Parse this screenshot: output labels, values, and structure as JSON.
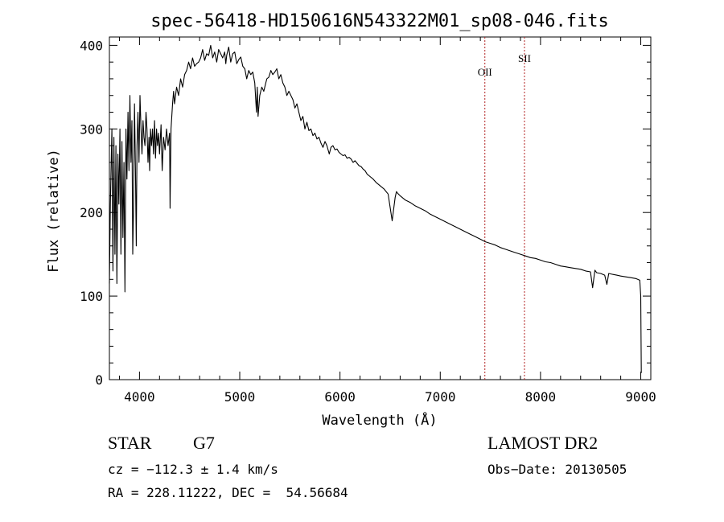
{
  "chart_data": {
    "type": "line",
    "title": "spec-56418-HD150616N543322M01_sp08-046.fits",
    "xlabel": "Wavelength (Å)",
    "ylabel": "Flux (relative)",
    "xlim": [
      3700,
      9100
    ],
    "ylim": [
      0,
      410
    ],
    "x_ticks": [
      4000,
      5000,
      6000,
      7000,
      8000,
      9000
    ],
    "y_ticks": [
      0,
      100,
      200,
      300,
      400
    ],
    "grid": false,
    "line_color": "#000000",
    "marker_color": "#b22222",
    "lines": [
      {
        "label": "OII",
        "x": 7445
      },
      {
        "label": "SII",
        "x": 7840
      }
    ],
    "series": [
      {
        "x": [
          3700,
          3710,
          3725,
          3735,
          3745,
          3755,
          3765,
          3775,
          3785,
          3795,
          3805,
          3815,
          3825,
          3835,
          3845,
          3855,
          3865,
          3875,
          3885,
          3895,
          3905,
          3915,
          3925,
          3933,
          3940,
          3950,
          3960,
          3968,
          3975,
          3985,
          3995,
          4005,
          4015,
          4025,
          4035,
          4045,
          4055,
          4065,
          4075,
          4085,
          4095,
          4101,
          4110,
          4120,
          4130,
          4140,
          4150,
          4160,
          4170,
          4180,
          4190,
          4200,
          4215,
          4226,
          4240,
          4255,
          4270,
          4285,
          4300,
          4305,
          4315,
          4330,
          4340,
          4350,
          4370,
          4390,
          4410,
          4430,
          4450,
          4470,
          4490,
          4510,
          4530,
          4550,
          4570,
          4590,
          4610,
          4630,
          4650,
          4670,
          4690,
          4710,
          4730,
          4750,
          4770,
          4790,
          4810,
          4830,
          4850,
          4861,
          4870,
          4890,
          4910,
          4930,
          4950,
          4970,
          4990,
          5010,
          5030,
          5050,
          5070,
          5090,
          5110,
          5130,
          5150,
          5167,
          5175,
          5183,
          5200,
          5220,
          5240,
          5260,
          5270,
          5290,
          5310,
          5330,
          5350,
          5370,
          5390,
          5410,
          5430,
          5450,
          5470,
          5490,
          5510,
          5530,
          5550,
          5570,
          5590,
          5610,
          5630,
          5650,
          5670,
          5690,
          5710,
          5730,
          5750,
          5770,
          5790,
          5810,
          5830,
          5850,
          5870,
          5893,
          5910,
          5930,
          5950,
          5970,
          5990,
          6010,
          6030,
          6050,
          6070,
          6090,
          6110,
          6130,
          6150,
          6170,
          6190,
          6210,
          6230,
          6250,
          6270,
          6300,
          6330,
          6360,
          6400,
          6440,
          6480,
          6520,
          6550,
          6563,
          6575,
          6600,
          6650,
          6700,
          6750,
          6800,
          6850,
          6900,
          6950,
          7000,
          7050,
          7100,
          7150,
          7200,
          7250,
          7300,
          7350,
          7400,
          7450,
          7500,
          7550,
          7600,
          7650,
          7700,
          7750,
          7800,
          7850,
          7900,
          7950,
          8000,
          8050,
          8100,
          8150,
          8200,
          8250,
          8300,
          8350,
          8400,
          8450,
          8498,
          8520,
          8542,
          8560,
          8600,
          8640,
          8662,
          8680,
          8720,
          8760,
          8800,
          8850,
          8900,
          8950,
          8990,
          9000,
          9005
        ],
        "y": [
          115,
          210,
          300,
          130,
          290,
          150,
          280,
          115,
          270,
          210,
          300,
          150,
          285,
          170,
          260,
          105,
          300,
          240,
          320,
          250,
          340,
          260,
          310,
          150,
          200,
          330,
          250,
          160,
          280,
          320,
          260,
          340,
          300,
          270,
          310,
          290,
          280,
          320,
          300,
          260,
          290,
          250,
          300,
          280,
          300,
          270,
          310,
          265,
          300,
          280,
          295,
          270,
          305,
          250,
          290,
          275,
          300,
          280,
          295,
          205,
          300,
          330,
          345,
          330,
          350,
          340,
          360,
          350,
          365,
          370,
          380,
          372,
          385,
          375,
          378,
          380,
          385,
          395,
          382,
          390,
          388,
          400,
          385,
          392,
          380,
          395,
          390,
          385,
          392,
          378,
          388,
          398,
          380,
          390,
          392,
          378,
          383,
          386,
          375,
          372,
          360,
          370,
          365,
          368,
          355,
          320,
          350,
          315,
          340,
          350,
          345,
          355,
          360,
          362,
          370,
          365,
          368,
          372,
          360,
          365,
          355,
          350,
          340,
          345,
          340,
          335,
          325,
          330,
          320,
          310,
          315,
          300,
          308,
          298,
          300,
          292,
          295,
          288,
          290,
          283,
          278,
          285,
          280,
          270,
          278,
          280,
          275,
          276,
          272,
          270,
          268,
          269,
          265,
          266,
          264,
          260,
          262,
          259,
          256,
          255,
          252,
          250,
          246,
          243,
          240,
          236,
          232,
          228,
          222,
          190,
          218,
          225,
          223,
          220,
          215,
          212,
          208,
          205,
          202,
          198,
          195,
          192,
          189,
          186,
          183,
          180,
          177,
          174,
          171,
          168,
          165,
          163,
          161,
          158,
          156,
          154,
          152,
          150,
          148,
          146,
          145,
          143,
          141,
          140,
          138,
          136,
          135,
          134,
          133,
          132,
          130,
          129,
          110,
          131,
          128,
          127,
          125,
          114,
          127,
          126,
          125,
          124,
          123,
          122,
          121,
          119,
          100,
          8
        ]
      }
    ]
  },
  "info": {
    "object_class": "STAR",
    "subclass": "G7",
    "cz": "cz = −112.3 ± 1.4 km/s",
    "coords": "RA = 228.11222, DEC =  54.56684",
    "survey": "LAMOST DR2",
    "obs_date": "Obs−Date: 20130505"
  }
}
